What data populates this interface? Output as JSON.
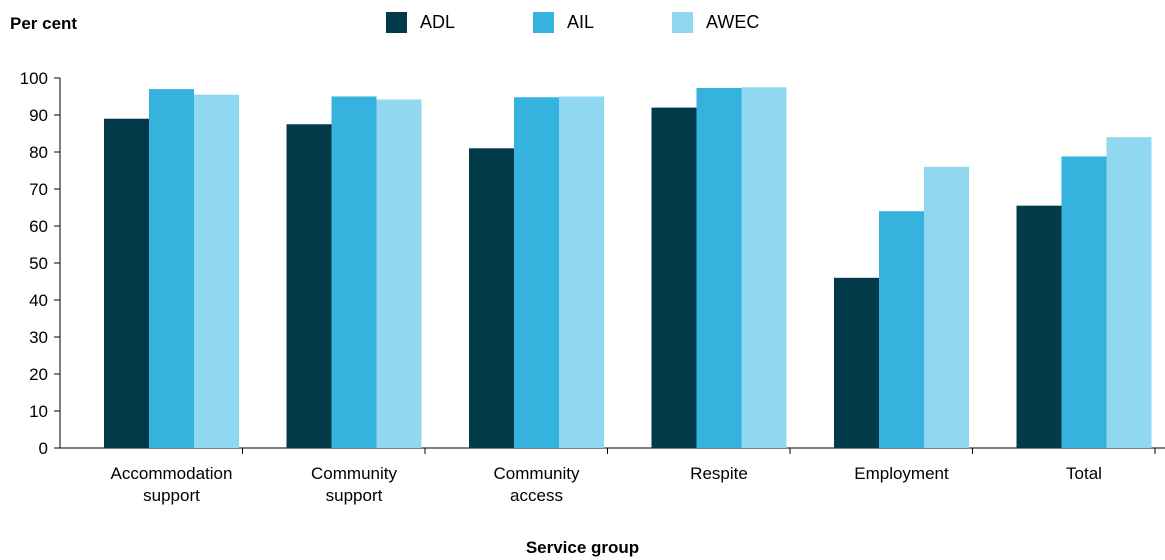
{
  "chart_data": {
    "type": "bar",
    "title": "",
    "ylabel": "Per cent",
    "xlabel": "Service group",
    "ylim": [
      0,
      100
    ],
    "yticks": [
      0,
      10,
      20,
      30,
      40,
      50,
      60,
      70,
      80,
      90,
      100
    ],
    "categories": [
      [
        "Accommodation",
        "support"
      ],
      [
        "Community",
        "support"
      ],
      [
        "Community",
        "access"
      ],
      [
        "Respite"
      ],
      [
        "Employment"
      ],
      [
        "Total"
      ]
    ],
    "series": [
      {
        "name": "ADL",
        "color": "#033a4a",
        "values": [
          89,
          87.5,
          81,
          92,
          46,
          65.5
        ]
      },
      {
        "name": "AIL",
        "color": "#35b2dd",
        "values": [
          97,
          95,
          94.8,
          97.3,
          64,
          78.8
        ]
      },
      {
        "name": "AWEC",
        "color": "#90d7f0",
        "values": [
          95.5,
          94.2,
          95,
          97.5,
          76,
          84
        ]
      }
    ],
    "legend_position": "top-center",
    "grid": false
  }
}
